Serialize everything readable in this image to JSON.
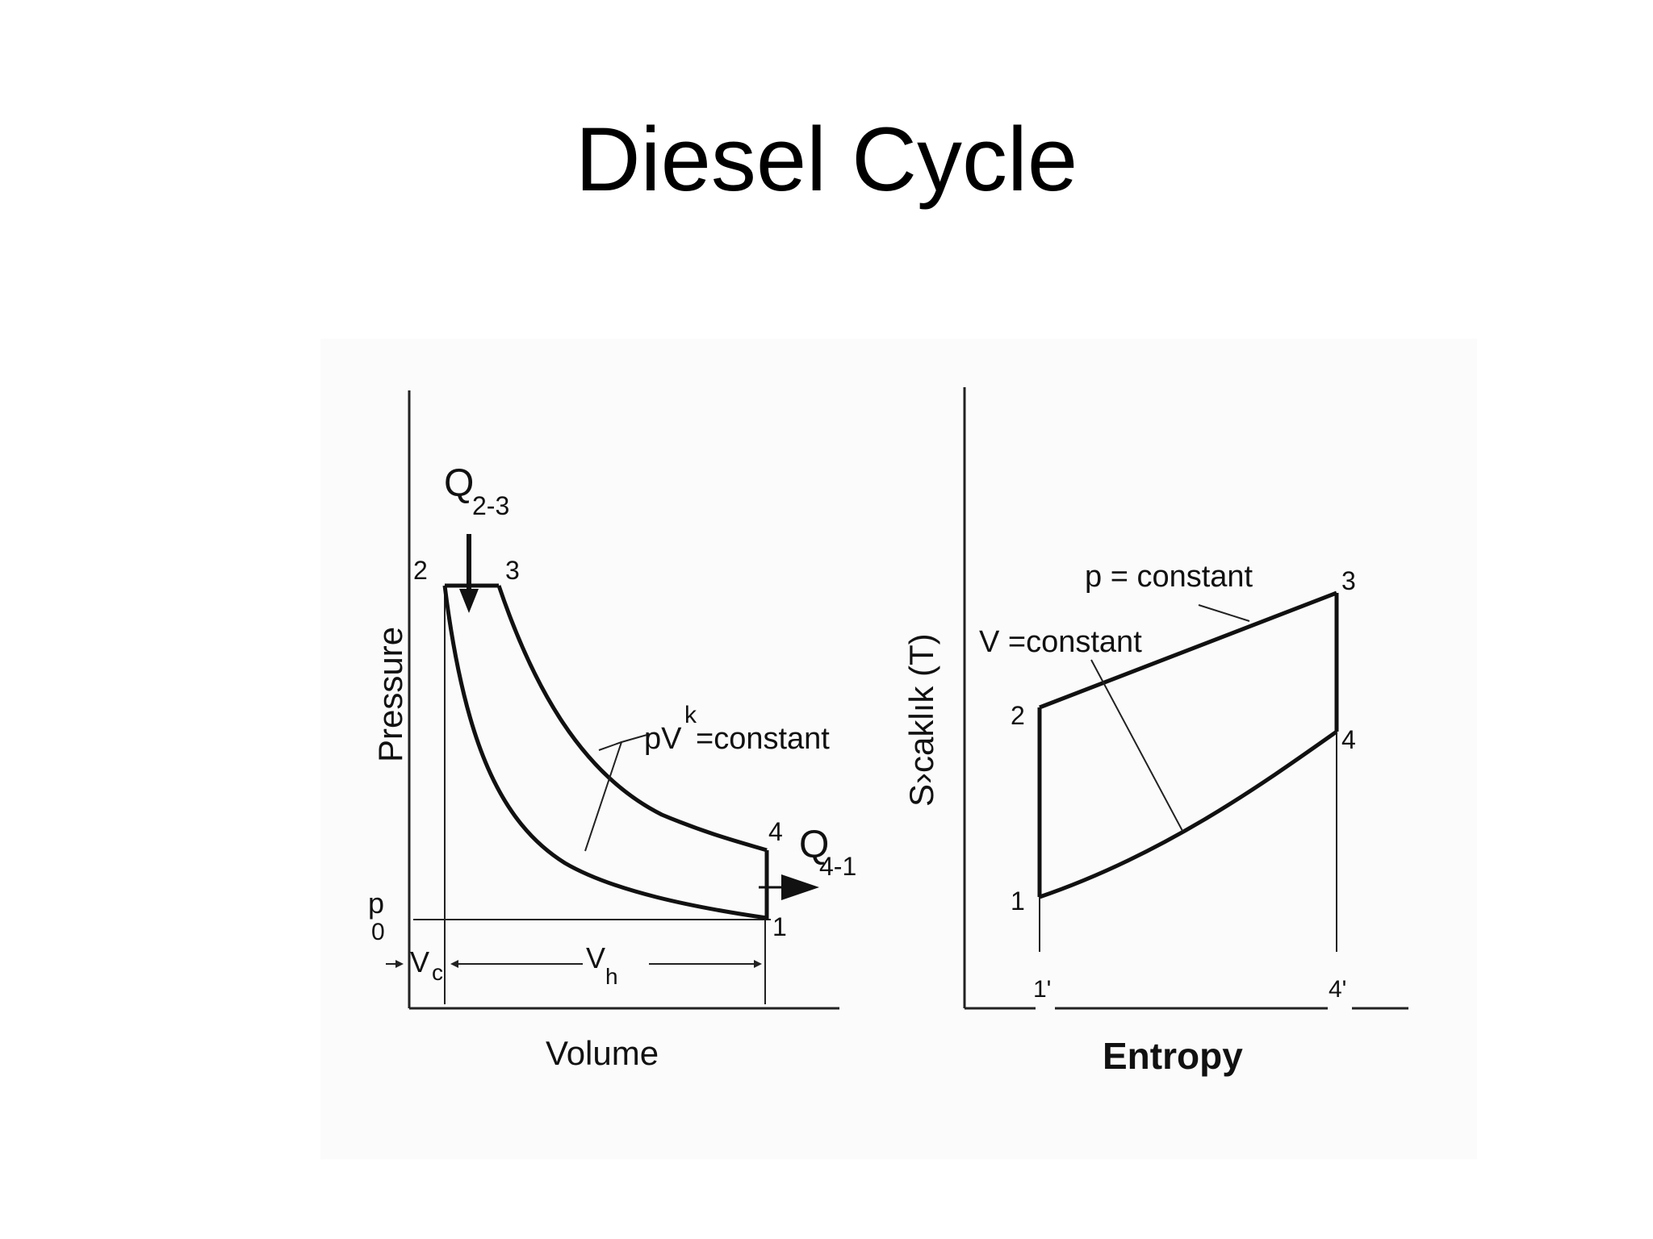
{
  "title": "Diesel Cycle",
  "pv_diagram": {
    "y_axis_label": "Pressure",
    "x_axis_label": "Volume",
    "heat_in_label": "Q",
    "heat_in_subscript": "2-3",
    "heat_out_label": "Q",
    "heat_out_subscript": "4-1",
    "point_2": "2",
    "point_3": "3",
    "point_4": "4",
    "point_1": "1",
    "polytropic_label_base": "pV",
    "polytropic_label_exp": "k",
    "polytropic_label_rest": " =constant",
    "p0_label": "p",
    "p0_subscript": "0",
    "vc_label": "V",
    "vc_subscript": "c",
    "vh_label": "V",
    "vh_subscript": "h"
  },
  "ts_diagram": {
    "y_axis_label": "S›caklık  (T)",
    "x_axis_label": "Entropy",
    "p_constant_label": "p = constant",
    "v_constant_label": "V =constant",
    "point_1": "1",
    "point_2": "2",
    "point_3": "3",
    "point_4": "4",
    "point_1_prime": "1'",
    "point_4_prime": "4'"
  }
}
